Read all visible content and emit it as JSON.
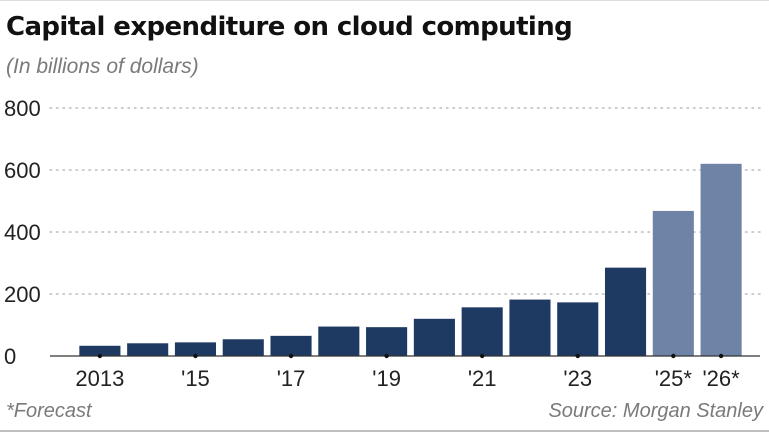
{
  "chart_data": {
    "type": "bar",
    "title": "Capital expenditure on cloud computing",
    "subtitle": "(In billions of dollars)",
    "categories": [
      "2013",
      "2014",
      "'15",
      "2016",
      "'17",
      "2018",
      "'19",
      "2020",
      "'21",
      "2022",
      "'23",
      "2024",
      "'25*",
      "'26*"
    ],
    "x_tick_labels": [
      "2013",
      "",
      "'15",
      "",
      "'17",
      "",
      "'19",
      "",
      "'21",
      "",
      "'23",
      "",
      "'25*",
      "'26*"
    ],
    "values": [
      33,
      41,
      44,
      54,
      65,
      95,
      93,
      120,
      157,
      182,
      173,
      285,
      468,
      620
    ],
    "forecast": [
      false,
      false,
      false,
      false,
      false,
      false,
      false,
      false,
      false,
      false,
      false,
      false,
      true,
      true
    ],
    "ylim": [
      0,
      800
    ],
    "y_ticks": [
      0,
      200,
      400,
      600,
      800
    ],
    "xlabel": "",
    "ylabel": "",
    "grid": "horizontal-dotted",
    "colors": {
      "actual": "#1e3a63",
      "forecast": "#6f83a7",
      "grid": "#bbbbbb",
      "axis": "#333333"
    }
  },
  "footnote": "*Forecast",
  "source": "Source: Morgan Stanley"
}
